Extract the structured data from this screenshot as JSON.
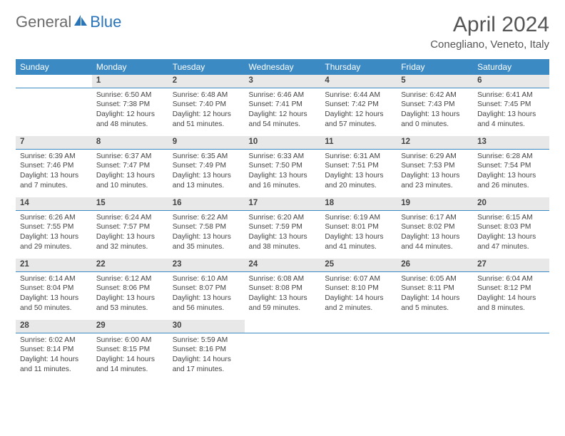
{
  "logo": {
    "text1": "General",
    "text2": "Blue"
  },
  "title": "April 2024",
  "location": "Conegliano, Veneto, Italy",
  "colors": {
    "header_bg": "#3b8ac4",
    "header_text": "#ffffff",
    "daynum_bg": "#e8e8e8",
    "daynum_border": "#3b8ac4",
    "body_text": "#444444",
    "title_text": "#555555",
    "logo_gray": "#6b6b6b",
    "logo_blue": "#2a74b8",
    "page_bg": "#ffffff"
  },
  "fonts": {
    "title_size": 30,
    "location_size": 15,
    "th_size": 12,
    "cell_size": 10.2,
    "daynum_size": 11.5
  },
  "weekdays": [
    "Sunday",
    "Monday",
    "Tuesday",
    "Wednesday",
    "Thursday",
    "Friday",
    "Saturday"
  ],
  "weeks": [
    {
      "nums": [
        "",
        "1",
        "2",
        "3",
        "4",
        "5",
        "6"
      ],
      "cells": [
        null,
        {
          "sunrise": "6:50 AM",
          "sunset": "7:38 PM",
          "daylight": "12 hours and 48 minutes."
        },
        {
          "sunrise": "6:48 AM",
          "sunset": "7:40 PM",
          "daylight": "12 hours and 51 minutes."
        },
        {
          "sunrise": "6:46 AM",
          "sunset": "7:41 PM",
          "daylight": "12 hours and 54 minutes."
        },
        {
          "sunrise": "6:44 AM",
          "sunset": "7:42 PM",
          "daylight": "12 hours and 57 minutes."
        },
        {
          "sunrise": "6:42 AM",
          "sunset": "7:43 PM",
          "daylight": "13 hours and 0 minutes."
        },
        {
          "sunrise": "6:41 AM",
          "sunset": "7:45 PM",
          "daylight": "13 hours and 4 minutes."
        }
      ]
    },
    {
      "nums": [
        "7",
        "8",
        "9",
        "10",
        "11",
        "12",
        "13"
      ],
      "cells": [
        {
          "sunrise": "6:39 AM",
          "sunset": "7:46 PM",
          "daylight": "13 hours and 7 minutes."
        },
        {
          "sunrise": "6:37 AM",
          "sunset": "7:47 PM",
          "daylight": "13 hours and 10 minutes."
        },
        {
          "sunrise": "6:35 AM",
          "sunset": "7:49 PM",
          "daylight": "13 hours and 13 minutes."
        },
        {
          "sunrise": "6:33 AM",
          "sunset": "7:50 PM",
          "daylight": "13 hours and 16 minutes."
        },
        {
          "sunrise": "6:31 AM",
          "sunset": "7:51 PM",
          "daylight": "13 hours and 20 minutes."
        },
        {
          "sunrise": "6:29 AM",
          "sunset": "7:53 PM",
          "daylight": "13 hours and 23 minutes."
        },
        {
          "sunrise": "6:28 AM",
          "sunset": "7:54 PM",
          "daylight": "13 hours and 26 minutes."
        }
      ]
    },
    {
      "nums": [
        "14",
        "15",
        "16",
        "17",
        "18",
        "19",
        "20"
      ],
      "cells": [
        {
          "sunrise": "6:26 AM",
          "sunset": "7:55 PM",
          "daylight": "13 hours and 29 minutes."
        },
        {
          "sunrise": "6:24 AM",
          "sunset": "7:57 PM",
          "daylight": "13 hours and 32 minutes."
        },
        {
          "sunrise": "6:22 AM",
          "sunset": "7:58 PM",
          "daylight": "13 hours and 35 minutes."
        },
        {
          "sunrise": "6:20 AM",
          "sunset": "7:59 PM",
          "daylight": "13 hours and 38 minutes."
        },
        {
          "sunrise": "6:19 AM",
          "sunset": "8:01 PM",
          "daylight": "13 hours and 41 minutes."
        },
        {
          "sunrise": "6:17 AM",
          "sunset": "8:02 PM",
          "daylight": "13 hours and 44 minutes."
        },
        {
          "sunrise": "6:15 AM",
          "sunset": "8:03 PM",
          "daylight": "13 hours and 47 minutes."
        }
      ]
    },
    {
      "nums": [
        "21",
        "22",
        "23",
        "24",
        "25",
        "26",
        "27"
      ],
      "cells": [
        {
          "sunrise": "6:14 AM",
          "sunset": "8:04 PM",
          "daylight": "13 hours and 50 minutes."
        },
        {
          "sunrise": "6:12 AM",
          "sunset": "8:06 PM",
          "daylight": "13 hours and 53 minutes."
        },
        {
          "sunrise": "6:10 AM",
          "sunset": "8:07 PM",
          "daylight": "13 hours and 56 minutes."
        },
        {
          "sunrise": "6:08 AM",
          "sunset": "8:08 PM",
          "daylight": "13 hours and 59 minutes."
        },
        {
          "sunrise": "6:07 AM",
          "sunset": "8:10 PM",
          "daylight": "14 hours and 2 minutes."
        },
        {
          "sunrise": "6:05 AM",
          "sunset": "8:11 PM",
          "daylight": "14 hours and 5 minutes."
        },
        {
          "sunrise": "6:04 AM",
          "sunset": "8:12 PM",
          "daylight": "14 hours and 8 minutes."
        }
      ]
    },
    {
      "nums": [
        "28",
        "29",
        "30",
        "",
        "",
        "",
        ""
      ],
      "cells": [
        {
          "sunrise": "6:02 AM",
          "sunset": "8:14 PM",
          "daylight": "14 hours and 11 minutes."
        },
        {
          "sunrise": "6:00 AM",
          "sunset": "8:15 PM",
          "daylight": "14 hours and 14 minutes."
        },
        {
          "sunrise": "5:59 AM",
          "sunset": "8:16 PM",
          "daylight": "14 hours and 17 minutes."
        },
        null,
        null,
        null,
        null
      ]
    }
  ],
  "labels": {
    "sunrise": "Sunrise:",
    "sunset": "Sunset:",
    "daylight": "Daylight:"
  }
}
